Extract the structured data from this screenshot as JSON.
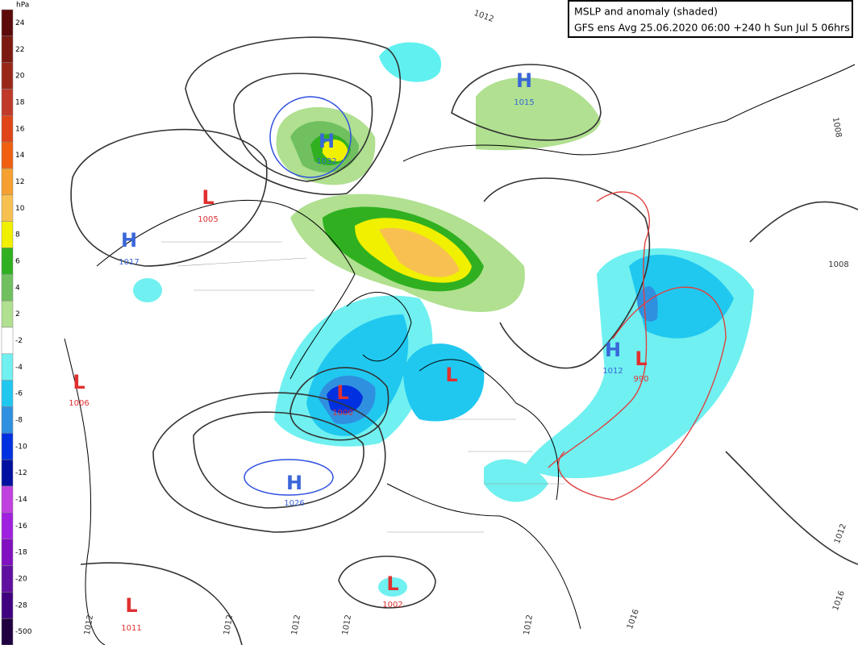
{
  "title": {
    "line1": "MSLP and anomaly (shaded)",
    "line2": "GFS ens Avg 25.06.2020 06:00 +240 h Sun Jul 5 06hrs"
  },
  "legend": {
    "unit": "hPa",
    "items": [
      {
        "label": 24,
        "color": "#5c0a0a"
      },
      {
        "label": 22,
        "color": "#7a1a10"
      },
      {
        "label": 20,
        "color": "#9a2818"
      },
      {
        "label": 18,
        "color": "#c0392b"
      },
      {
        "label": 16,
        "color": "#e0451a"
      },
      {
        "label": 14,
        "color": "#f06010"
      },
      {
        "label": 12,
        "color": "#f5a030"
      },
      {
        "label": 10,
        "color": "#f8c050"
      },
      {
        "label": 8,
        "color": "#f0f000"
      },
      {
        "label": 6,
        "color": "#30b020"
      },
      {
        "label": 4,
        "color": "#70c060"
      },
      {
        "label": 2,
        "color": "#b0e090"
      },
      {
        "label": -2,
        "color": "#ffffff"
      },
      {
        "label": -4,
        "color": "#70f0f0"
      },
      {
        "label": -6,
        "color": "#20c8f0"
      },
      {
        "label": -8,
        "color": "#3090e0"
      },
      {
        "label": -10,
        "color": "#0030e0"
      },
      {
        "label": -12,
        "color": "#0010a0"
      },
      {
        "label": -14,
        "color": "#c040e0"
      },
      {
        "label": -16,
        "color": "#a020e0"
      },
      {
        "label": -18,
        "color": "#8010c0"
      },
      {
        "label": -20,
        "color": "#6010a0"
      },
      {
        "label": -28,
        "color": "#400080"
      },
      {
        "label": -500,
        "color": "#200040"
      }
    ]
  },
  "centers": [
    {
      "letter": "H",
      "pressure": 1032
    },
    {
      "letter": "H",
      "pressure": 1015
    },
    {
      "letter": "L",
      "pressure": 1005
    },
    {
      "letter": "H",
      "pressure": 1017
    },
    {
      "letter": "L",
      "pressure": 1006
    },
    {
      "letter": "L",
      "pressure": 1000
    },
    {
      "letter": "L"
    },
    {
      "letter": "H",
      "pressure": 1012
    },
    {
      "letter": "L",
      "pressure": 990
    },
    {
      "letter": "H",
      "pressure": 1026
    },
    {
      "letter": "L",
      "pressure": 1002
    },
    {
      "letter": "L",
      "pressure": 1011
    }
  ],
  "isobar_labels": [
    1012,
    1008,
    1008,
    1012,
    1016,
    1012,
    1012,
    1012,
    1012,
    1012,
    1016
  ]
}
